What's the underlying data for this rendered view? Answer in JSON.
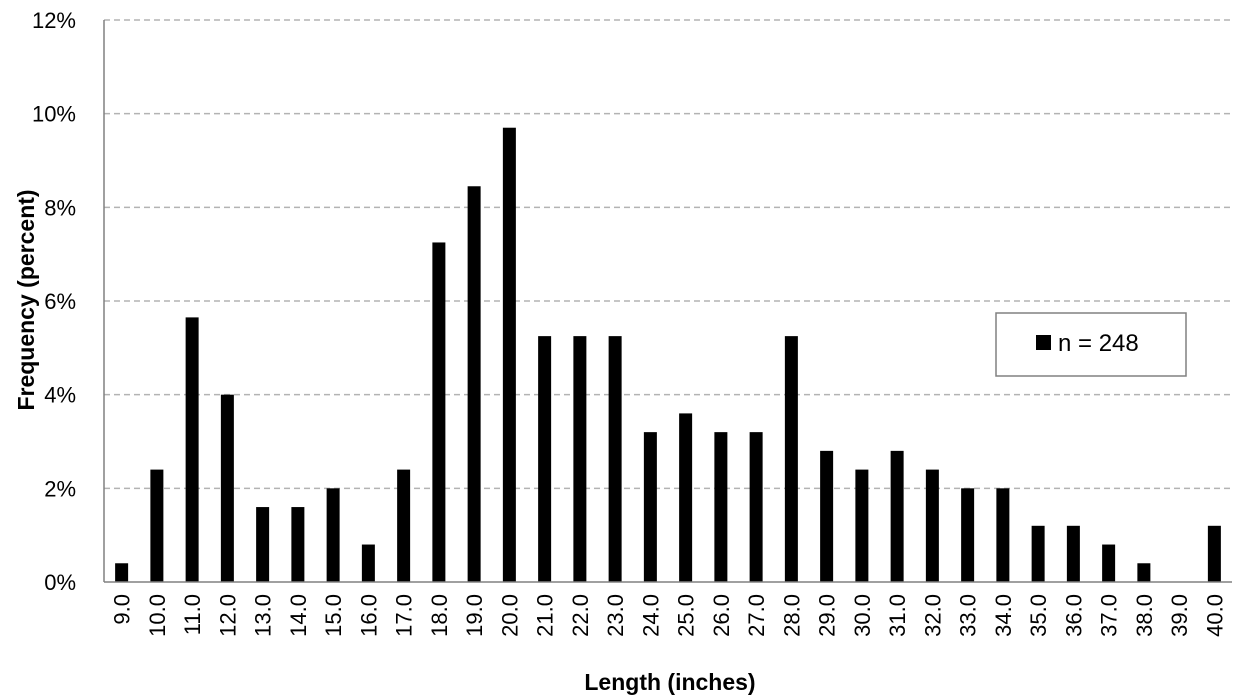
{
  "chart_data": {
    "type": "bar",
    "title": "",
    "xlabel": "Length (inches)",
    "ylabel": "Frequency (percent)",
    "ylim": [
      0,
      12
    ],
    "yticks": [
      0,
      2,
      4,
      6,
      8,
      10,
      12
    ],
    "ytick_labels": [
      "0%",
      "2%",
      "4%",
      "6%",
      "8%",
      "10%",
      "12%"
    ],
    "grid": true,
    "legend_position": "right",
    "categories": [
      "9.0",
      "10.0",
      "11.0",
      "12.0",
      "13.0",
      "14.0",
      "15.0",
      "16.0",
      "17.0",
      "18.0",
      "19.0",
      "20.0",
      "21.0",
      "22.0",
      "23.0",
      "24.0",
      "25.0",
      "26.0",
      "27.0",
      "28.0",
      "29.0",
      "30.0",
      "31.0",
      "32.0",
      "33.0",
      "34.0",
      "35.0",
      "36.0",
      "37.0",
      "38.0",
      "39.0",
      "40.0"
    ],
    "series": [
      {
        "name": "n = 248",
        "color": "#000000",
        "values": [
          0.4,
          2.4,
          5.65,
          4.0,
          1.6,
          1.6,
          2.0,
          0.8,
          2.4,
          7.25,
          8.45,
          9.7,
          5.25,
          5.25,
          5.25,
          3.2,
          3.6,
          3.2,
          3.2,
          5.25,
          2.8,
          2.4,
          2.8,
          2.4,
          2.0,
          2.0,
          1.2,
          1.2,
          0.8,
          0.4,
          0,
          1.2
        ]
      }
    ]
  }
}
